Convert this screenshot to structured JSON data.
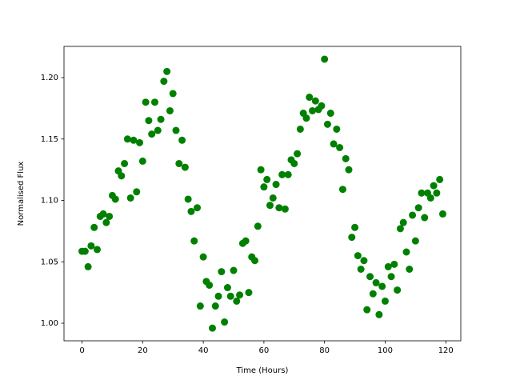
{
  "chart_data": {
    "type": "scatter",
    "x_label": "Time (Hours)",
    "y_label": "Normalised Flux",
    "x": [
      0,
      1,
      2,
      3,
      4,
      5,
      6,
      7,
      8,
      9,
      10,
      11,
      12,
      13,
      14,
      15,
      16,
      17,
      18,
      19,
      20,
      21,
      22,
      23,
      24,
      25,
      26,
      27,
      28,
      29,
      30,
      31,
      32,
      33,
      34,
      35,
      36,
      37,
      38,
      39,
      40,
      41,
      42,
      43,
      44,
      45,
      46,
      47,
      48,
      49,
      50,
      51,
      52,
      53,
      54,
      55,
      56,
      57,
      58,
      59,
      60,
      61,
      62,
      63,
      64,
      65,
      66,
      67,
      68,
      69,
      70,
      71,
      72,
      73,
      74,
      75,
      76,
      77,
      78,
      79,
      80,
      81,
      82,
      83,
      84,
      85,
      86,
      87,
      88,
      89,
      90,
      91,
      92,
      93,
      94,
      95,
      96,
      97,
      98,
      99,
      100,
      101,
      102,
      103,
      104,
      105,
      106,
      107,
      108,
      109,
      110,
      111,
      112,
      113,
      114,
      115,
      116,
      117,
      118,
      119
    ],
    "series": [
      {
        "color": "#008000",
        "values": [
          1.0586,
          1.0586,
          1.046,
          1.063,
          1.078,
          1.06,
          1.087,
          1.089,
          1.082,
          1.087,
          1.104,
          1.101,
          1.124,
          1.12,
          1.13,
          1.15,
          1.102,
          1.149,
          1.107,
          1.147,
          1.132,
          1.18,
          1.165,
          1.154,
          1.18,
          1.157,
          1.166,
          1.197,
          1.205,
          1.173,
          1.187,
          1.157,
          1.13,
          1.149,
          1.127,
          1.101,
          1.091,
          1.067,
          1.094,
          1.014,
          1.054,
          1.034,
          1.031,
          0.996,
          1.014,
          1.022,
          1.042,
          1.001,
          1.029,
          1.022,
          1.043,
          1.018,
          1.023,
          1.065,
          1.067,
          1.025,
          1.054,
          1.051,
          1.079,
          1.125,
          1.111,
          1.117,
          1.096,
          1.102,
          1.113,
          1.094,
          1.121,
          1.093,
          1.121,
          1.133,
          1.13,
          1.138,
          1.158,
          1.171,
          1.167,
          1.184,
          1.173,
          1.181,
          1.174,
          1.177,
          1.215,
          1.162,
          1.171,
          1.146,
          1.158,
          1.143,
          1.109,
          1.134,
          1.125,
          1.07,
          1.078,
          1.055,
          1.044,
          1.051,
          1.011,
          1.038,
          1.024,
          1.033,
          1.007,
          1.03,
          1.018,
          1.046,
          1.038,
          1.048,
          1.027,
          1.077,
          1.082,
          1.058,
          1.044,
          1.088,
          1.067,
          1.094,
          1.106,
          1.086,
          1.106,
          1.102,
          1.112,
          1.106,
          1.117,
          1.089
        ]
      }
    ],
    "xlim": [
      -5.95,
      124.95
    ],
    "ylim": [
      0.9857,
      1.2254
    ],
    "xticks": [
      0,
      20,
      40,
      60,
      80,
      100,
      120
    ],
    "yticks": [
      {
        "value": 1.0,
        "label": "1.00"
      },
      {
        "value": 1.05,
        "label": "1.05"
      },
      {
        "value": 1.1,
        "label": "1.10"
      },
      {
        "value": 1.15,
        "label": "1.15"
      },
      {
        "value": 1.2,
        "label": "1.20"
      }
    ]
  }
}
